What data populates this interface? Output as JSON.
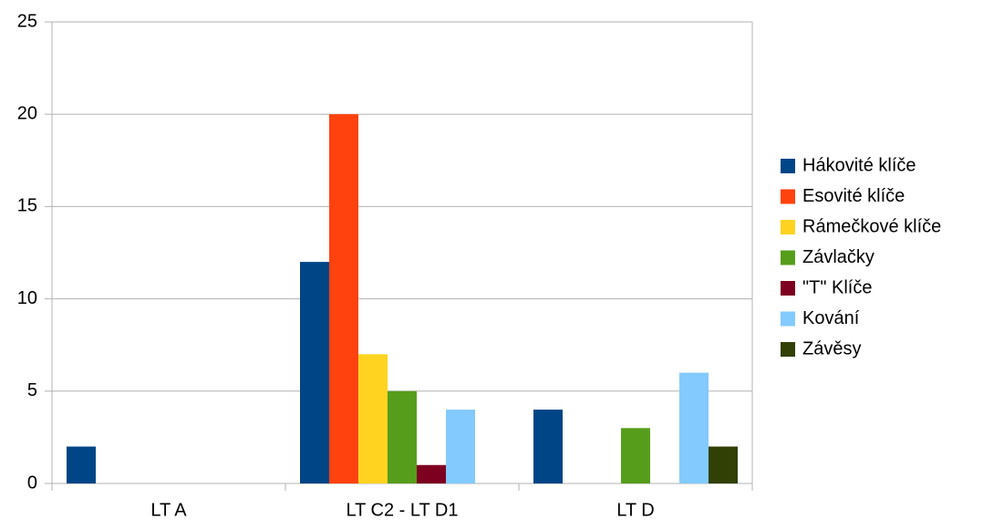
{
  "chart_data": {
    "type": "bar",
    "categories": [
      "LT A",
      "LT C2 - LT D1",
      "LT D"
    ],
    "series": [
      {
        "name": "Hákovité klíče",
        "color": "#004586",
        "values": [
          2,
          12,
          4
        ]
      },
      {
        "name": "Esovité klíče",
        "color": "#ff420e",
        "values": [
          0,
          20,
          0
        ]
      },
      {
        "name": "Rámečkové klíče",
        "color": "#ffd320",
        "values": [
          0,
          7,
          0
        ]
      },
      {
        "name": "Závlačky",
        "color": "#579d1c",
        "values": [
          0,
          5,
          3
        ]
      },
      {
        "name": "\"T\" Klíče",
        "color": "#7e0021",
        "values": [
          0,
          1,
          0
        ]
      },
      {
        "name": "Kování",
        "color": "#83caff",
        "values": [
          0,
          4,
          6
        ]
      },
      {
        "name": "Závěsy",
        "color": "#314004",
        "values": [
          0,
          0,
          2
        ]
      }
    ],
    "ylim": [
      0,
      25
    ],
    "yticks": [
      0,
      5,
      10,
      15,
      20,
      25
    ],
    "grid": true,
    "legend": "right"
  }
}
